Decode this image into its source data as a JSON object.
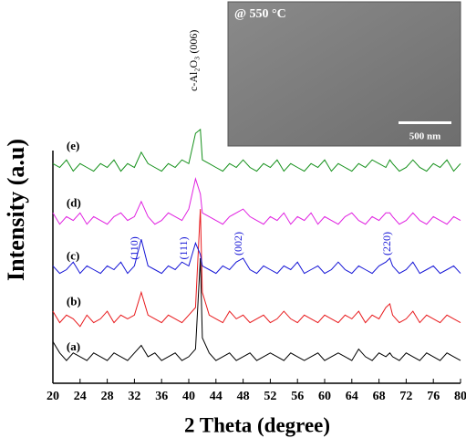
{
  "chart_data": {
    "type": "line",
    "x_label": "2 Theta (degree)",
    "y_label": "Intensity (a.u)",
    "x": [
      20,
      21,
      22,
      23,
      24,
      25,
      26,
      27,
      28,
      29,
      30,
      31,
      32,
      33,
      34,
      35,
      36,
      37,
      38,
      39,
      40,
      41,
      41.7,
      42,
      43,
      44,
      45,
      46,
      47,
      48,
      49,
      50,
      51,
      52,
      53,
      54,
      55,
      56,
      57,
      58,
      59,
      60,
      61,
      62,
      63,
      64,
      65,
      66,
      67,
      68,
      69,
      69.6,
      70,
      71,
      72,
      73,
      74,
      75,
      76,
      77,
      78,
      79,
      80
    ],
    "series": [
      {
        "name": "(a)",
        "color": "#000000",
        "values": [
          11,
          8,
          6,
          8,
          7,
          6,
          8,
          7,
          6,
          8,
          7,
          6,
          8,
          10,
          7,
          8,
          6,
          7,
          8,
          6,
          7,
          9,
          33,
          12,
          8,
          6,
          7,
          8,
          6,
          7,
          8,
          6,
          7,
          8,
          7,
          6,
          8,
          7,
          6,
          7,
          8,
          6,
          7,
          8,
          7,
          6,
          9,
          7,
          6,
          8,
          7,
          8,
          7,
          6,
          8,
          7,
          6,
          8,
          7,
          6,
          8,
          7,
          6
        ]
      },
      {
        "name": "(b)",
        "color": "#e8191c",
        "values": [
          19,
          16,
          18,
          17,
          15,
          18,
          16,
          17,
          19,
          16,
          18,
          17,
          18,
          24,
          18,
          17,
          16,
          18,
          17,
          16,
          18,
          20,
          46,
          24,
          18,
          17,
          16,
          19,
          17,
          18,
          16,
          17,
          18,
          16,
          17,
          19,
          17,
          16,
          18,
          17,
          16,
          18,
          17,
          16,
          18,
          17,
          19,
          16,
          18,
          17,
          20,
          21,
          18,
          16,
          17,
          19,
          16,
          18,
          17,
          16,
          18,
          17,
          16
        ]
      },
      {
        "name": "(c)",
        "color": "#1515d6",
        "values": [
          31,
          29,
          30,
          32,
          29,
          31,
          30,
          29,
          31,
          30,
          32,
          29,
          31,
          38,
          31,
          30,
          29,
          31,
          30,
          32,
          31,
          37,
          34,
          31,
          30,
          29,
          31,
          30,
          32,
          33,
          30,
          29,
          31,
          30,
          29,
          31,
          30,
          32,
          29,
          30,
          31,
          29,
          30,
          32,
          30,
          29,
          31,
          30,
          29,
          31,
          32,
          33,
          31,
          29,
          30,
          32,
          29,
          30,
          31,
          29,
          30,
          31,
          29
        ]
      },
      {
        "name": "(d)",
        "color": "#e020e0",
        "values": [
          45,
          42,
          44,
          43,
          45,
          42,
          44,
          43,
          42,
          44,
          45,
          43,
          44,
          48,
          44,
          42,
          43,
          45,
          44,
          43,
          46,
          54,
          50,
          45,
          44,
          43,
          42,
          44,
          45,
          46,
          44,
          43,
          42,
          44,
          43,
          45,
          42,
          44,
          43,
          45,
          42,
          44,
          43,
          42,
          44,
          45,
          43,
          42,
          44,
          43,
          45,
          45,
          44,
          42,
          43,
          45,
          43,
          42,
          44,
          43,
          42,
          44,
          43
        ]
      },
      {
        "name": "(e)",
        "color": "#14901a",
        "values": [
          58,
          57,
          59,
          56,
          58,
          57,
          56,
          58,
          57,
          59,
          56,
          58,
          57,
          61,
          58,
          57,
          56,
          58,
          57,
          59,
          58,
          66,
          67,
          59,
          58,
          57,
          56,
          58,
          57,
          59,
          57,
          56,
          58,
          57,
          59,
          56,
          58,
          57,
          56,
          58,
          57,
          59,
          56,
          58,
          57,
          56,
          58,
          57,
          59,
          58,
          57,
          59,
          58,
          56,
          57,
          59,
          57,
          56,
          58,
          57,
          59,
          56,
          58
        ]
      }
    ],
    "xlim": [
      20,
      80
    ],
    "xticks": [
      20,
      24,
      28,
      32,
      36,
      40,
      44,
      48,
      52,
      56,
      60,
      64,
      68,
      72,
      76,
      80
    ],
    "ylim": [
      0,
      100
    ],
    "annotations": [
      "c-Al₂O₃ (006)",
      "(110)",
      "(111)",
      "(002)",
      "(220)"
    ],
    "inset_label": "@ 550 °C",
    "scale_bar_label": "500 nm"
  }
}
